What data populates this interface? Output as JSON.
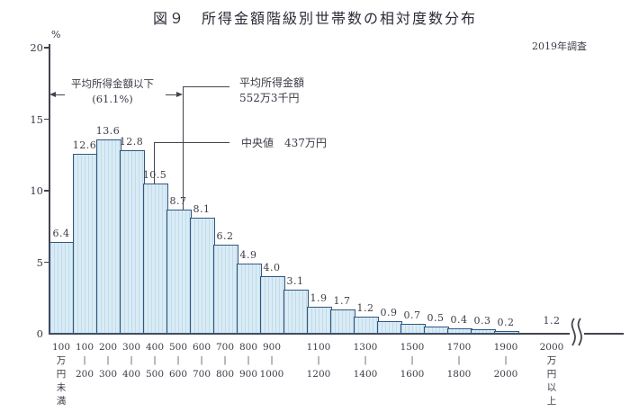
{
  "chart_data": {
    "type": "bar",
    "title": "図９　所得金額階級別世帯数の相対度数分布",
    "note": "2019年調査",
    "ylabel": "%",
    "ylim": [
      0,
      20
    ],
    "yticks": [
      0,
      5,
      10,
      15,
      20
    ],
    "grid": false,
    "open_ended_last_class": true,
    "categories": [
      "100万円未満",
      "100〜200",
      "200〜300",
      "300〜400",
      "400〜500",
      "500〜600",
      "600〜700",
      "700〜800",
      "800〜900",
      "900〜1000",
      "1000〜1100",
      "1100〜1200",
      "1200〜1300",
      "1300〜1400",
      "1400〜1500",
      "1500〜1600",
      "1600〜1700",
      "1700〜1800",
      "1800〜1900",
      "1900〜2000",
      "2000万円以上"
    ],
    "values": [
      6.4,
      12.6,
      13.6,
      12.8,
      10.5,
      8.7,
      8.1,
      6.2,
      4.9,
      4.0,
      3.1,
      1.9,
      1.7,
      1.2,
      0.9,
      0.7,
      0.5,
      0.4,
      0.3,
      0.2,
      1.2
    ],
    "value_labels": [
      "6.4",
      "12.6",
      "13.6",
      "12.8",
      "10.5",
      "8.7",
      "8.1",
      "6.2",
      "4.9",
      "4.0",
      "3.1",
      "1.9",
      "1.7",
      "1.2",
      "0.9",
      "0.7",
      "0.5",
      "0.4",
      "0.3",
      "0.2",
      "1.2"
    ],
    "x_axis_labels": [
      {
        "index": 0,
        "lines": [
          "100",
          "万",
          "円",
          "未",
          "満"
        ]
      },
      {
        "index": 1,
        "lines": [
          "100",
          "|",
          "200"
        ]
      },
      {
        "index": 2,
        "lines": [
          "200",
          "|",
          "300"
        ]
      },
      {
        "index": 3,
        "lines": [
          "300",
          "|",
          "400"
        ]
      },
      {
        "index": 4,
        "lines": [
          "400",
          "|",
          "500"
        ]
      },
      {
        "index": 5,
        "lines": [
          "500",
          "|",
          "600"
        ]
      },
      {
        "index": 6,
        "lines": [
          "600",
          "|",
          "700"
        ]
      },
      {
        "index": 7,
        "lines": [
          "700",
          "|",
          "800"
        ]
      },
      {
        "index": 8,
        "lines": [
          "800",
          "|",
          "900"
        ]
      },
      {
        "index": 9,
        "lines": [
          "900",
          "|",
          "1000"
        ]
      },
      {
        "index": 11,
        "lines": [
          "1100",
          "|",
          "1200"
        ]
      },
      {
        "index": 13,
        "lines": [
          "1300",
          "|",
          "1400"
        ]
      },
      {
        "index": 15,
        "lines": [
          "1500",
          "|",
          "1600"
        ]
      },
      {
        "index": 17,
        "lines": [
          "1700",
          "|",
          "1800"
        ]
      },
      {
        "index": 19,
        "lines": [
          "1900",
          "|",
          "2000"
        ]
      },
      {
        "index": 20,
        "lines": [
          "2000",
          "万",
          "円",
          "以",
          "上"
        ]
      }
    ],
    "annotations": {
      "below_mean_label": "平均所得金額以下",
      "below_mean_pct": "(61.1%)",
      "mean_label": "平均所得金額",
      "mean_value": "552万3千円",
      "median_label": "中央値　437万円",
      "mean_class": "500〜600",
      "median_class": "400〜500"
    },
    "colors": {
      "bar_fill": "#d9ecf6",
      "bar_stripe": "#c1dbe9",
      "bar_border": "#34567f",
      "axis": "#44444e",
      "text": "#3b3b47"
    }
  }
}
